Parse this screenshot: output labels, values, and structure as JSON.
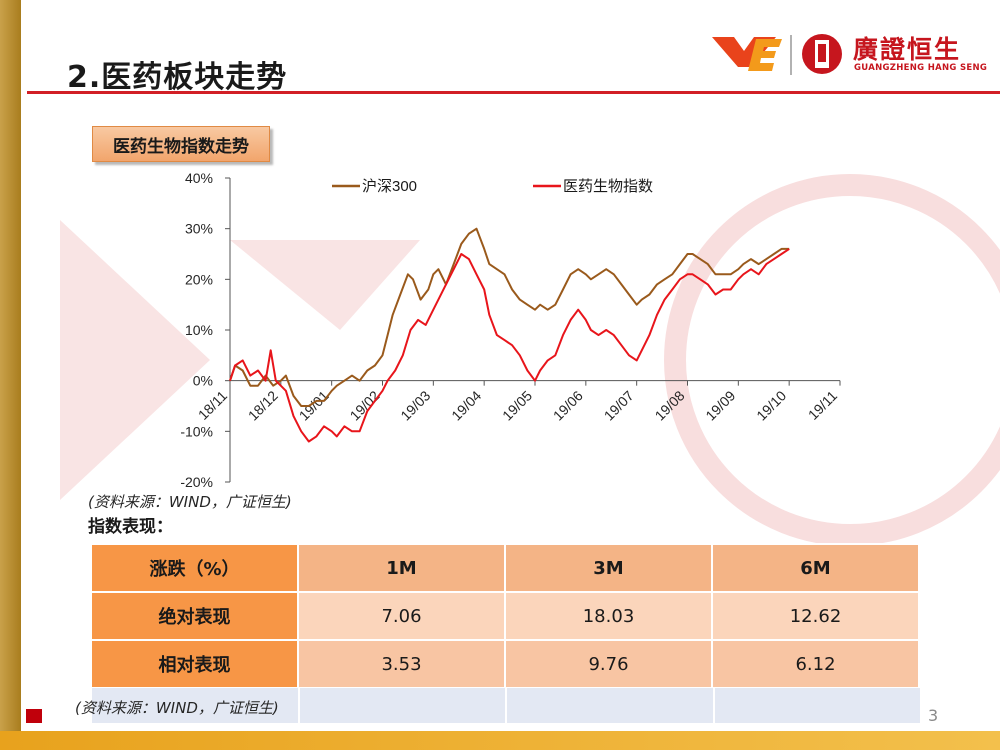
{
  "slide": {
    "title": "2.医药板块走势",
    "page_number": "3"
  },
  "logo": {
    "name": "廣證恒生",
    "sub": "GUANGZHENG HANG SENG"
  },
  "section_tag": "医药生物指数走势",
  "source_note_chart": "(资料来源：WIND，广证恒生)",
  "perf_label": "指数表现：",
  "perf_table": {
    "headers": [
      "涨跌（%）",
      "1M",
      "3M",
      "6M"
    ],
    "rows": [
      {
        "label": "绝对表现",
        "values": [
          "7.06",
          "18.03",
          "12.62"
        ]
      },
      {
        "label": "相对表现",
        "values": [
          "3.53",
          "9.76",
          "6.12"
        ]
      }
    ]
  },
  "source_note_table": "(资料来源：WIND，广证恒生)",
  "colors": {
    "hs300": "#9a5a1c",
    "pharma": "#e8151b",
    "accent": "#d21f26",
    "tag": "#f2a56c"
  },
  "chart_data": {
    "type": "line",
    "title": "",
    "ylim": [
      -20,
      40
    ],
    "yticks": [
      "40%",
      "30%",
      "20%",
      "10%",
      "0%",
      "-10%",
      "-20%"
    ],
    "x_ticks": [
      "18/11",
      "18/12",
      "19/01",
      "19/02",
      "19/03",
      "19/04",
      "19/05",
      "19/06",
      "19/07",
      "19/08",
      "19/09",
      "19/10",
      "19/11"
    ],
    "legend_position": "top",
    "series": [
      {
        "name": "沪深300",
        "color": "#9a5a1c",
        "points": [
          [
            0,
            0
          ],
          [
            0.1,
            3
          ],
          [
            0.25,
            2
          ],
          [
            0.4,
            -1
          ],
          [
            0.55,
            -1
          ],
          [
            0.7,
            1
          ],
          [
            0.85,
            -1
          ],
          [
            1.0,
            0
          ],
          [
            1.1,
            1
          ],
          [
            1.25,
            -3
          ],
          [
            1.4,
            -5
          ],
          [
            1.55,
            -5
          ],
          [
            1.7,
            -4
          ],
          [
            1.85,
            -4
          ],
          [
            2.0,
            -2
          ],
          [
            2.1,
            -1
          ],
          [
            2.25,
            0
          ],
          [
            2.4,
            1
          ],
          [
            2.55,
            0
          ],
          [
            2.7,
            2
          ],
          [
            2.85,
            3
          ],
          [
            3.0,
            5
          ],
          [
            3.1,
            9
          ],
          [
            3.2,
            13
          ],
          [
            3.35,
            17
          ],
          [
            3.5,
            21
          ],
          [
            3.6,
            20
          ],
          [
            3.75,
            16
          ],
          [
            3.9,
            18
          ],
          [
            4.0,
            21
          ],
          [
            4.1,
            22
          ],
          [
            4.25,
            19
          ],
          [
            4.4,
            23
          ],
          [
            4.55,
            27
          ],
          [
            4.7,
            29
          ],
          [
            4.85,
            30
          ],
          [
            5.0,
            26
          ],
          [
            5.1,
            23
          ],
          [
            5.25,
            22
          ],
          [
            5.4,
            21
          ],
          [
            5.55,
            18
          ],
          [
            5.7,
            16
          ],
          [
            5.85,
            15
          ],
          [
            6.0,
            14
          ],
          [
            6.1,
            15
          ],
          [
            6.25,
            14
          ],
          [
            6.4,
            15
          ],
          [
            6.55,
            18
          ],
          [
            6.7,
            21
          ],
          [
            6.85,
            22
          ],
          [
            7.0,
            21
          ],
          [
            7.1,
            20
          ],
          [
            7.25,
            21
          ],
          [
            7.4,
            22
          ],
          [
            7.55,
            21
          ],
          [
            7.7,
            19
          ],
          [
            7.85,
            17
          ],
          [
            8.0,
            15
          ],
          [
            8.1,
            16
          ],
          [
            8.25,
            17
          ],
          [
            8.4,
            19
          ],
          [
            8.55,
            20
          ],
          [
            8.7,
            21
          ],
          [
            8.85,
            23
          ],
          [
            9.0,
            25
          ],
          [
            9.1,
            25
          ],
          [
            9.25,
            24
          ],
          [
            9.4,
            23
          ],
          [
            9.55,
            21
          ],
          [
            9.7,
            21
          ],
          [
            9.85,
            21
          ],
          [
            10.0,
            22
          ],
          [
            10.1,
            23
          ],
          [
            10.25,
            24
          ],
          [
            10.4,
            23
          ],
          [
            10.55,
            24
          ],
          [
            10.7,
            25
          ],
          [
            10.85,
            26
          ],
          [
            11.0,
            26
          ]
        ]
      },
      {
        "name": "医药生物指数",
        "color": "#e8151b",
        "points": [
          [
            0,
            0
          ],
          [
            0.1,
            3
          ],
          [
            0.25,
            4
          ],
          [
            0.4,
            1
          ],
          [
            0.55,
            2
          ],
          [
            0.7,
            0
          ],
          [
            0.8,
            6
          ],
          [
            0.9,
            0
          ],
          [
            1.0,
            -1
          ],
          [
            1.1,
            -2
          ],
          [
            1.25,
            -7
          ],
          [
            1.4,
            -10
          ],
          [
            1.55,
            -12
          ],
          [
            1.7,
            -11
          ],
          [
            1.85,
            -9
          ],
          [
            2.0,
            -10
          ],
          [
            2.1,
            -11
          ],
          [
            2.25,
            -9
          ],
          [
            2.4,
            -10
          ],
          [
            2.55,
            -10
          ],
          [
            2.7,
            -6
          ],
          [
            2.85,
            -4
          ],
          [
            3.0,
            -2
          ],
          [
            3.1,
            0
          ],
          [
            3.25,
            2
          ],
          [
            3.4,
            5
          ],
          [
            3.55,
            10
          ],
          [
            3.7,
            12
          ],
          [
            3.85,
            11
          ],
          [
            4.0,
            14
          ],
          [
            4.1,
            16
          ],
          [
            4.25,
            19
          ],
          [
            4.4,
            22
          ],
          [
            4.55,
            25
          ],
          [
            4.7,
            24
          ],
          [
            4.85,
            21
          ],
          [
            5.0,
            18
          ],
          [
            5.1,
            13
          ],
          [
            5.25,
            9
          ],
          [
            5.4,
            8
          ],
          [
            5.55,
            7
          ],
          [
            5.7,
            5
          ],
          [
            5.85,
            2
          ],
          [
            6.0,
            0
          ],
          [
            6.1,
            2
          ],
          [
            6.25,
            4
          ],
          [
            6.4,
            5
          ],
          [
            6.55,
            9
          ],
          [
            6.7,
            12
          ],
          [
            6.85,
            14
          ],
          [
            7.0,
            12
          ],
          [
            7.1,
            10
          ],
          [
            7.25,
            9
          ],
          [
            7.4,
            10
          ],
          [
            7.55,
            9
          ],
          [
            7.7,
            7
          ],
          [
            7.85,
            5
          ],
          [
            8.0,
            4
          ],
          [
            8.1,
            6
          ],
          [
            8.25,
            9
          ],
          [
            8.4,
            13
          ],
          [
            8.55,
            16
          ],
          [
            8.7,
            18
          ],
          [
            8.85,
            20
          ],
          [
            9.0,
            21
          ],
          [
            9.1,
            21
          ],
          [
            9.25,
            20
          ],
          [
            9.4,
            19
          ],
          [
            9.55,
            17
          ],
          [
            9.7,
            18
          ],
          [
            9.85,
            18
          ],
          [
            10.0,
            20
          ],
          [
            10.1,
            21
          ],
          [
            10.25,
            22
          ],
          [
            10.4,
            21
          ],
          [
            10.55,
            23
          ],
          [
            10.7,
            24
          ],
          [
            10.85,
            25
          ],
          [
            11.0,
            26
          ]
        ]
      }
    ]
  }
}
